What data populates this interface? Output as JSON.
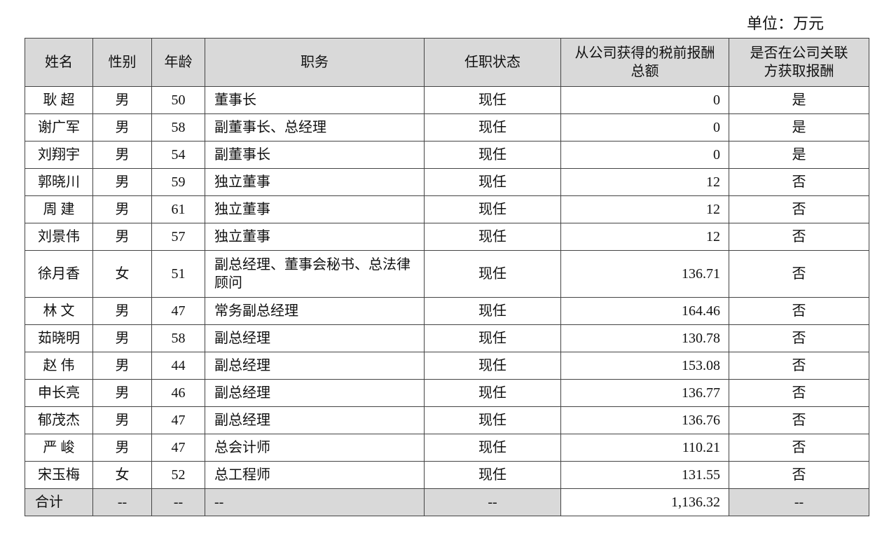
{
  "unit_label": "单位：万元",
  "headers": [
    "姓名",
    "性别",
    "年龄",
    "职务",
    "任职状态",
    "从公司获得的税前报酬总额",
    "是否在公司关联方获取报酬"
  ],
  "rows": [
    {
      "name": "耿 超",
      "gender": "男",
      "age": "50",
      "duty": "董事长",
      "status": "现任",
      "pay": "0",
      "related": "是"
    },
    {
      "name": "谢广军",
      "gender": "男",
      "age": "58",
      "duty": "副董事长、总经理",
      "status": "现任",
      "pay": "0",
      "related": "是"
    },
    {
      "name": "刘翔宇",
      "gender": "男",
      "age": "54",
      "duty": "副董事长",
      "status": "现任",
      "pay": "0",
      "related": "是"
    },
    {
      "name": "郭晓川",
      "gender": "男",
      "age": "59",
      "duty": "独立董事",
      "status": "现任",
      "pay": "12",
      "related": "否"
    },
    {
      "name": "周 建",
      "gender": "男",
      "age": "61",
      "duty": "独立董事",
      "status": "现任",
      "pay": "12",
      "related": "否"
    },
    {
      "name": "刘景伟",
      "gender": "男",
      "age": "57",
      "duty": "独立董事",
      "status": "现任",
      "pay": "12",
      "related": "否"
    },
    {
      "name": "徐月香",
      "gender": "女",
      "age": "51",
      "duty": "副总经理、董事会秘书、总法律顾问",
      "status": "现任",
      "pay": "136.71",
      "related": "否"
    },
    {
      "name": "林 文",
      "gender": "男",
      "age": "47",
      "duty": "常务副总经理",
      "status": "现任",
      "pay": "164.46",
      "related": "否"
    },
    {
      "name": "茹晓明",
      "gender": "男",
      "age": "58",
      "duty": "副总经理",
      "status": "现任",
      "pay": "130.78",
      "related": "否"
    },
    {
      "name": "赵 伟",
      "gender": "男",
      "age": "44",
      "duty": "副总经理",
      "status": "现任",
      "pay": "153.08",
      "related": "否"
    },
    {
      "name": "申长亮",
      "gender": "男",
      "age": "46",
      "duty": "副总经理",
      "status": "现任",
      "pay": "136.77",
      "related": "否"
    },
    {
      "name": "郁茂杰",
      "gender": "男",
      "age": "47",
      "duty": "副总经理",
      "status": "现任",
      "pay": "136.76",
      "related": "否"
    },
    {
      "name": "严 峻",
      "gender": "男",
      "age": "47",
      "duty": "总会计师",
      "status": "现任",
      "pay": "110.21",
      "related": "否"
    },
    {
      "name": "宋玉梅",
      "gender": "女",
      "age": "52",
      "duty": "总工程师",
      "status": "现任",
      "pay": "131.55",
      "related": "否"
    }
  ],
  "total": {
    "name": "合计",
    "gender": "--",
    "age": "--",
    "duty": "--",
    "status": "--",
    "pay": "1,136.32",
    "related": "--"
  },
  "colors": {
    "header_bg": "#d9d9d9",
    "border": "#444444"
  }
}
